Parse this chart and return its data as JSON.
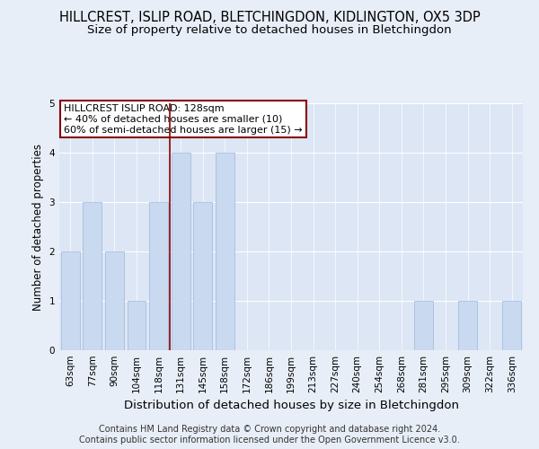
{
  "title": "HILLCREST, ISLIP ROAD, BLETCHINGDON, KIDLINGTON, OX5 3DP",
  "subtitle": "Size of property relative to detached houses in Bletchingdon",
  "xlabel": "Distribution of detached houses by size in Bletchingdon",
  "ylabel": "Number of detached properties",
  "categories": [
    "63sqm",
    "77sqm",
    "90sqm",
    "104sqm",
    "118sqm",
    "131sqm",
    "145sqm",
    "158sqm",
    "172sqm",
    "186sqm",
    "199sqm",
    "213sqm",
    "227sqm",
    "240sqm",
    "254sqm",
    "268sqm",
    "281sqm",
    "295sqm",
    "309sqm",
    "322sqm",
    "336sqm"
  ],
  "values": [
    2,
    3,
    2,
    1,
    3,
    4,
    3,
    4,
    0,
    0,
    0,
    0,
    0,
    0,
    0,
    0,
    1,
    0,
    1,
    0,
    1
  ],
  "bar_color": "#c9d9f0",
  "bar_edgecolor": "#a0b8d8",
  "ref_line_index": 5,
  "ref_line_color": "#8b0000",
  "annotation_text": "HILLCREST ISLIP ROAD: 128sqm\n← 40% of detached houses are smaller (10)\n60% of semi-detached houses are larger (15) →",
  "annotation_box_color": "#ffffff",
  "annotation_box_edgecolor": "#8b0000",
  "ylim": [
    0,
    5
  ],
  "yticks": [
    0,
    1,
    2,
    3,
    4,
    5
  ],
  "footer": "Contains HM Land Registry data © Crown copyright and database right 2024.\nContains public sector information licensed under the Open Government Licence v3.0.",
  "title_fontsize": 10.5,
  "subtitle_fontsize": 9.5,
  "xlabel_fontsize": 9.5,
  "ylabel_fontsize": 8.5,
  "tick_fontsize": 7.5,
  "annot_fontsize": 8,
  "footer_fontsize": 7,
  "bg_color": "#e8eef8",
  "plot_bg_color": "#dce6f5"
}
